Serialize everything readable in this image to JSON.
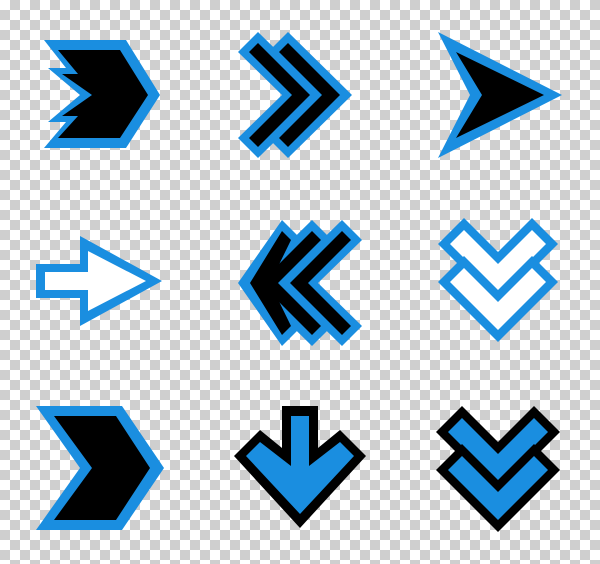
{
  "colors": {
    "accent_blue": "#1a8ee0",
    "fill_black": "#000000",
    "fill_white": "#ffffff",
    "checker": "#cfcfcf"
  },
  "icons": [
    "double-chevron-right-icon",
    "triple-chevron-right-icon",
    "cursor-arrow-right-icon",
    "arrow-right-icon",
    "triple-chevron-left-icon",
    "double-chevron-down-icon",
    "chevron-right-icon",
    "arrow-down-icon",
    "double-chevron-down-filled-icon"
  ]
}
